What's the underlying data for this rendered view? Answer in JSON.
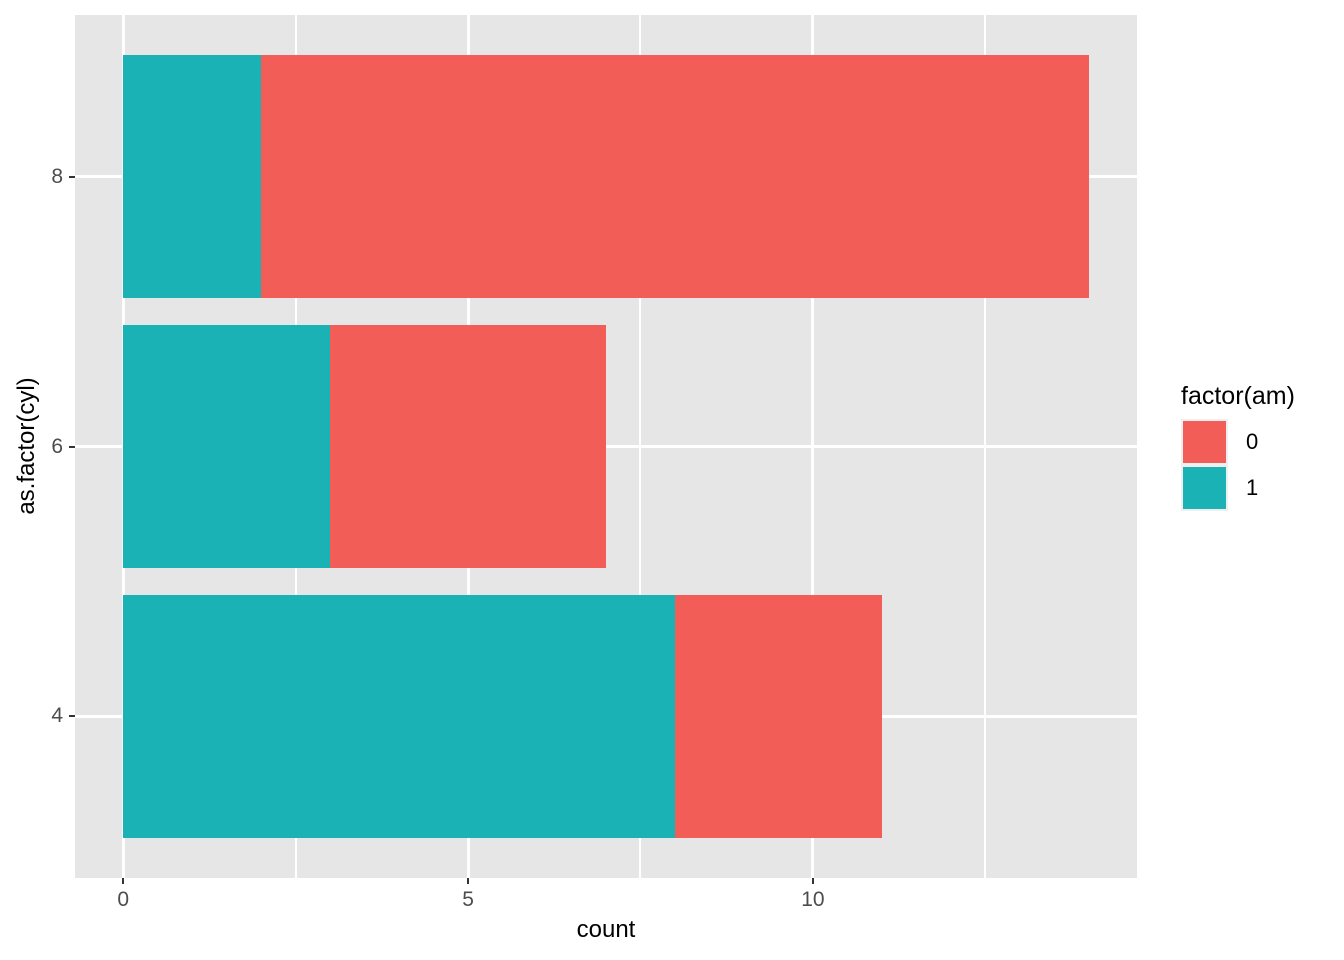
{
  "figure": {
    "xlabel": "count",
    "ylabel": "as.factor(cyl)",
    "legend": {
      "title": "factor(am)",
      "items": [
        {
          "label": "0",
          "color": "#F25D58"
        },
        {
          "label": "1",
          "color": "#1BB2B5"
        }
      ]
    }
  },
  "chart_data": {
    "type": "bar",
    "orientation": "horizontal",
    "stacked": true,
    "title": "",
    "xlabel": "count",
    "ylabel": "as.factor(cyl)",
    "categories": [
      "4",
      "6",
      "8"
    ],
    "series": [
      {
        "name": "1",
        "color": "#1BB2B5",
        "values": [
          8,
          3,
          2
        ]
      },
      {
        "name": "0",
        "color": "#F25D58",
        "values": [
          3,
          4,
          12
        ]
      }
    ],
    "totals": [
      11,
      7,
      14
    ],
    "x_ticks": [
      0,
      5,
      10
    ],
    "x_minor_ticks": [
      2.5,
      7.5,
      12.5
    ],
    "xlim": [
      -0.7,
      14.7
    ],
    "bar_width": 0.9,
    "grid": true,
    "legend_title": "factor(am)",
    "legend_position": "right",
    "colors": {
      "panel_background": "#E6E6E6",
      "grid": "#FFFFFF",
      "tick_mark": "#333333",
      "tick_label": "#4D4D4D",
      "text": "#000000",
      "legend_key_background": "#EFEFEF"
    }
  }
}
